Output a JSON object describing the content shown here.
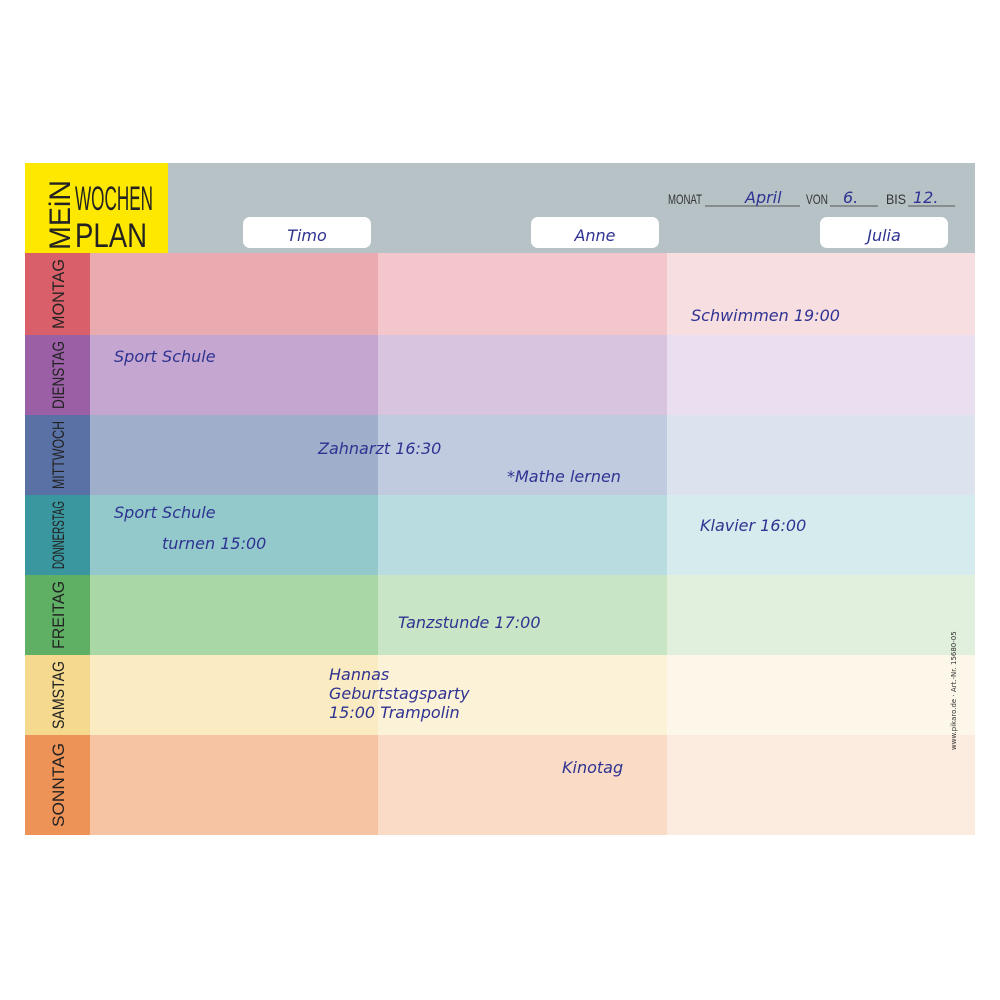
{
  "logo": {
    "word1": "MEiN",
    "word2": "WOCHEN",
    "word3": "PLAN"
  },
  "period": {
    "month_label": "MONAT",
    "month": "April",
    "from_label": "VON",
    "from": "6.",
    "to_label": "BIS",
    "to": "12."
  },
  "people": [
    "Timo",
    "Anne",
    "Julia"
  ],
  "days": [
    "MONTAG",
    "DIENSTAG",
    "MITTWOCH",
    "DONNERSTAG",
    "FREITAG",
    "SAMSTAG",
    "SONNTAG"
  ],
  "entries": [
    {
      "lines": [
        "Schwimmen 19:00"
      ]
    },
    {
      "lines": [
        "Sport Schule"
      ]
    },
    {
      "lines": [
        "Zahnarzt 16:30"
      ]
    },
    {
      "lines": [
        "*Mathe lernen"
      ]
    },
    {
      "lines": [
        "Sport Schule"
      ]
    },
    {
      "lines": [
        "turnen 15:00"
      ]
    },
    {
      "lines": [
        "Klavier 16:00"
      ]
    },
    {
      "lines": [
        "Tanzstunde 17:00"
      ]
    },
    {
      "lines": [
        "Hannas",
        "Geburtstagsparty",
        "15:00 Trampolin"
      ]
    },
    {
      "lines": [
        "Kinotag"
      ]
    }
  ],
  "footer": "www.pikaro.de · Art.-Nr. 15680-05"
}
